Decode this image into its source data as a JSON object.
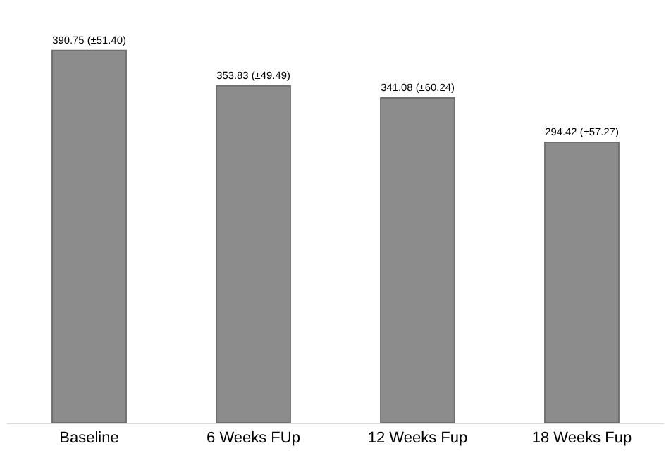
{
  "chart_data": {
    "type": "bar",
    "categories": [
      "Baseline",
      "6 Weeks FUp",
      "12 Weeks Fup",
      "18 Weeks Fup"
    ],
    "values": [
      390.75,
      353.83,
      341.08,
      294.42
    ],
    "value_labels": [
      "390.75 (±51.40)",
      "353.83 (±49.49)",
      "341.08 (±60.24)",
      "294.42 (±57.27)"
    ],
    "color": "#8c8c8c",
    "tick_labels": "x"
  }
}
